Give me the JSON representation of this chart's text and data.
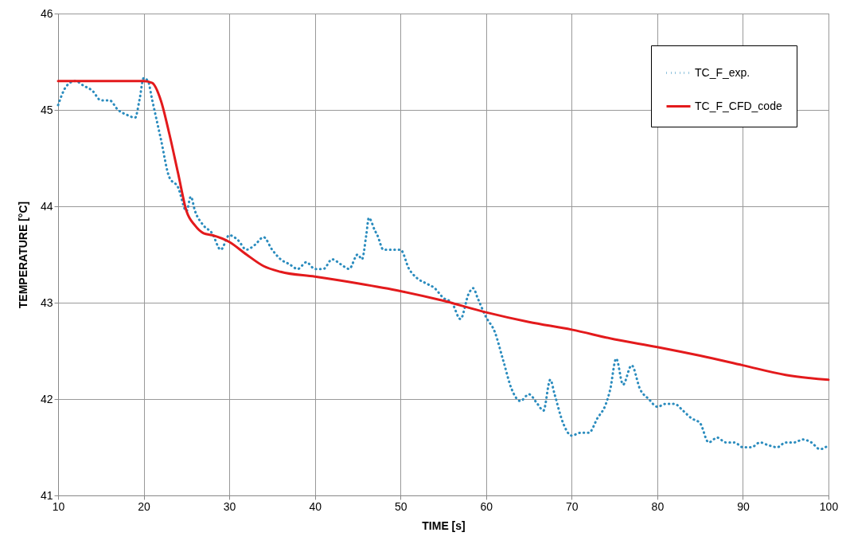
{
  "chart_data": {
    "type": "line",
    "xlabel": "TIME [s]",
    "ylabel": "TEMPERATURE [°C]",
    "xlim": [
      10,
      100
    ],
    "xticks": [
      10,
      20,
      30,
      40,
      50,
      60,
      70,
      80,
      90,
      100
    ],
    "ylim": [
      41,
      46
    ],
    "yticks": [
      41,
      42,
      43,
      44,
      45,
      46
    ],
    "grid": true,
    "legend": "top right",
    "marker": "none",
    "series": [
      {
        "name": "TC_F_exp.",
        "color": "#2b8cbe",
        "line_style": "dotted",
        "x": [
          10,
          11,
          12,
          13,
          14,
          15,
          16,
          17,
          18,
          19,
          19.5,
          20,
          20.5,
          21,
          22,
          23,
          24,
          25,
          25.5,
          26,
          27,
          28,
          29,
          30,
          31,
          32,
          33,
          34,
          35,
          36,
          37,
          38,
          39,
          40,
          41,
          42,
          43,
          44,
          45,
          45.5,
          46,
          46.3,
          47,
          47.3,
          48,
          49,
          50,
          51,
          52,
          53,
          54,
          55,
          56,
          57,
          58,
          58.5,
          59,
          60,
          61,
          62,
          63,
          64,
          65,
          66,
          66.7,
          67.5,
          68,
          69,
          70,
          71,
          72,
          73,
          74,
          74.5,
          75.2,
          76,
          77,
          78,
          79,
          80,
          81,
          82,
          83,
          84,
          85,
          86,
          87,
          88,
          89,
          90,
          91,
          92,
          93,
          94,
          95,
          96,
          97,
          98,
          99,
          100
        ],
        "values": [
          45.05,
          45.25,
          45.3,
          45.25,
          45.2,
          45.1,
          45.1,
          45.0,
          44.95,
          44.92,
          45.1,
          45.33,
          45.3,
          45.1,
          44.7,
          44.3,
          44.2,
          43.95,
          44.1,
          43.95,
          43.8,
          43.72,
          43.55,
          43.7,
          43.65,
          43.55,
          43.6,
          43.68,
          43.55,
          43.45,
          43.4,
          43.35,
          43.42,
          43.35,
          43.35,
          43.45,
          43.4,
          43.35,
          43.5,
          43.45,
          43.7,
          43.88,
          43.75,
          43.7,
          43.55,
          43.55,
          43.55,
          43.35,
          43.25,
          43.2,
          43.15,
          43.05,
          43.0,
          42.83,
          43.1,
          43.15,
          43.05,
          42.85,
          42.7,
          42.4,
          42.1,
          41.98,
          42.05,
          41.95,
          41.88,
          42.2,
          42.05,
          41.75,
          41.62,
          41.65,
          41.65,
          41.8,
          41.95,
          42.1,
          42.42,
          42.15,
          42.35,
          42.1,
          42.0,
          41.92,
          41.95,
          41.95,
          41.88,
          41.8,
          41.75,
          41.55,
          41.6,
          41.55,
          41.55,
          41.5,
          41.5,
          41.55,
          41.52,
          41.5,
          41.55,
          41.55,
          41.58,
          41.55,
          41.48,
          41.52
        ]
      },
      {
        "name": "TC_F_CFD_code",
        "color": "#e31a1c",
        "line_style": "solid",
        "x": [
          10,
          20,
          21,
          22,
          23,
          24,
          25,
          26,
          27,
          28,
          30,
          32,
          34,
          36,
          40,
          45,
          50,
          55,
          60,
          65,
          70,
          75,
          80,
          85,
          90,
          95,
          100
        ],
        "values": [
          45.3,
          45.3,
          45.28,
          45.1,
          44.75,
          44.35,
          43.95,
          43.8,
          43.72,
          43.7,
          43.63,
          43.5,
          43.38,
          43.32,
          43.27,
          43.2,
          43.12,
          43.02,
          42.9,
          42.8,
          42.72,
          42.62,
          42.54,
          42.45,
          42.35,
          42.25,
          42.2
        ]
      }
    ]
  }
}
